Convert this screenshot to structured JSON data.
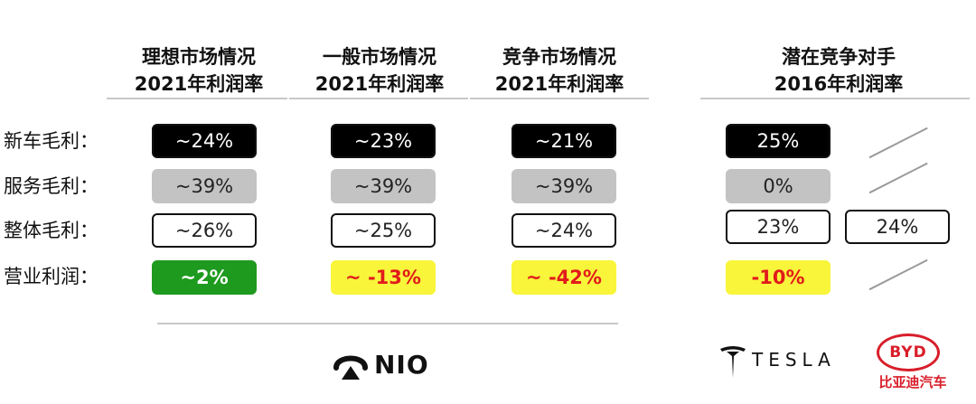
{
  "headers": [
    {
      "line1": "理想市场情况",
      "line2": "2021年利润率"
    },
    {
      "line1": "一般市场情况",
      "line2": "2021年利润率"
    },
    {
      "line1": "竞争市场情况",
      "line2": "2021年利润率"
    },
    {
      "line1": "潜在竞争对手",
      "line2": "2016年利润率"
    }
  ],
  "row_labels": [
    "新车毛利：",
    "服务毛利：",
    "整体毛利：",
    "营业利润："
  ],
  "scenario_columns": [
    {
      "values": [
        "~24%",
        "~39%",
        "~26%",
        "~2%"
      ]
    },
    {
      "values": [
        "~23%",
        "~39%",
        "~25%",
        "~ -13%"
      ]
    },
    {
      "values": [
        "~21%",
        "~39%",
        "~24%",
        "~ -42%"
      ]
    }
  ],
  "tesla_values": [
    "25%",
    "0%",
    "23%",
    "-10%"
  ],
  "byd_values": [
    "24%"
  ],
  "logos": {
    "nio": "NIO",
    "tesla": "TESLA",
    "byd_badge": "BYD",
    "byd_sub": "比亚迪汽车"
  },
  "colors": {
    "black_cell": "#000000",
    "gray_cell": "#c3c3c3",
    "green_cell": "#1e9a1e",
    "yellow_cell": "#f8f53a",
    "negative_text": "#e11b1b",
    "byd_red": "#d81e2a"
  }
}
